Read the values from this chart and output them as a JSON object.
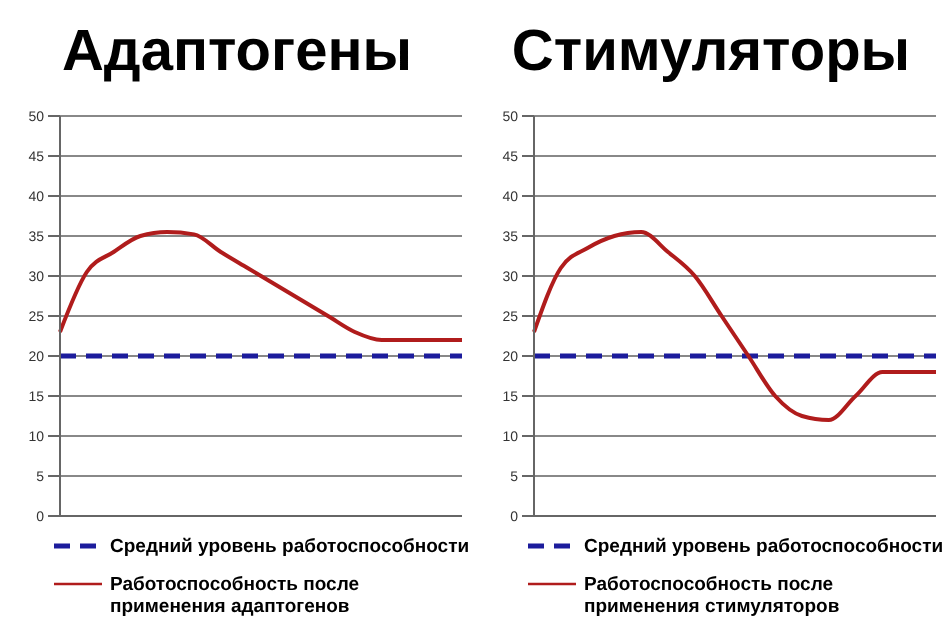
{
  "chart_data": [
    {
      "type": "line",
      "title": "Адаптогены",
      "categories": [
        null,
        null,
        null,
        null,
        null,
        null,
        null,
        null,
        null,
        null,
        null,
        null,
        null,
        null,
        null,
        null
      ],
      "series": [
        {
          "name": "Средний уровень работоспособности",
          "color": "#1c1c9c",
          "line_style": "dashed",
          "values": [
            20,
            20,
            20,
            20,
            20,
            20,
            20,
            20,
            20,
            20,
            20,
            20,
            20,
            20,
            20,
            20
          ]
        },
        {
          "name": "Работоспособность после применения адаптогенов",
          "color": "#b01c1c",
          "line_style": "solid",
          "values": [
            23,
            30.5,
            33,
            35,
            35.5,
            35.2,
            33,
            31,
            29,
            27,
            25,
            23,
            22,
            22,
            22,
            22
          ]
        }
      ],
      "ylim": [
        0,
        50
      ],
      "yticks": [
        0,
        5,
        10,
        15,
        20,
        25,
        30,
        35,
        40,
        45,
        50
      ],
      "grid": "y",
      "tick_labels": "y",
      "legend": "bottom",
      "marker": "none"
    },
    {
      "type": "line",
      "title": "Стимуляторы",
      "categories": [
        null,
        null,
        null,
        null,
        null,
        null,
        null,
        null,
        null,
        null,
        null,
        null,
        null,
        null,
        null,
        null
      ],
      "series": [
        {
          "name": "Средний уровень работоспособности",
          "color": "#1c1c9c",
          "line_style": "dashed",
          "values": [
            20,
            20,
            20,
            20,
            20,
            20,
            20,
            20,
            20,
            20,
            20,
            20,
            20,
            20,
            20,
            20
          ]
        },
        {
          "name": "Работоспособность после применения стимуляторов",
          "color": "#b01c1c",
          "line_style": "solid",
          "values": [
            23,
            31,
            33.5,
            35,
            35.5,
            33,
            30,
            25,
            20,
            15,
            12.5,
            12,
            15,
            18,
            18,
            18
          ]
        }
      ],
      "ylim": [
        0,
        50
      ],
      "yticks": [
        0,
        5,
        10,
        15,
        20,
        25,
        30,
        35,
        40,
        45,
        50
      ],
      "grid": "y",
      "tick_labels": "y",
      "legend": "bottom",
      "marker": "none"
    }
  ]
}
